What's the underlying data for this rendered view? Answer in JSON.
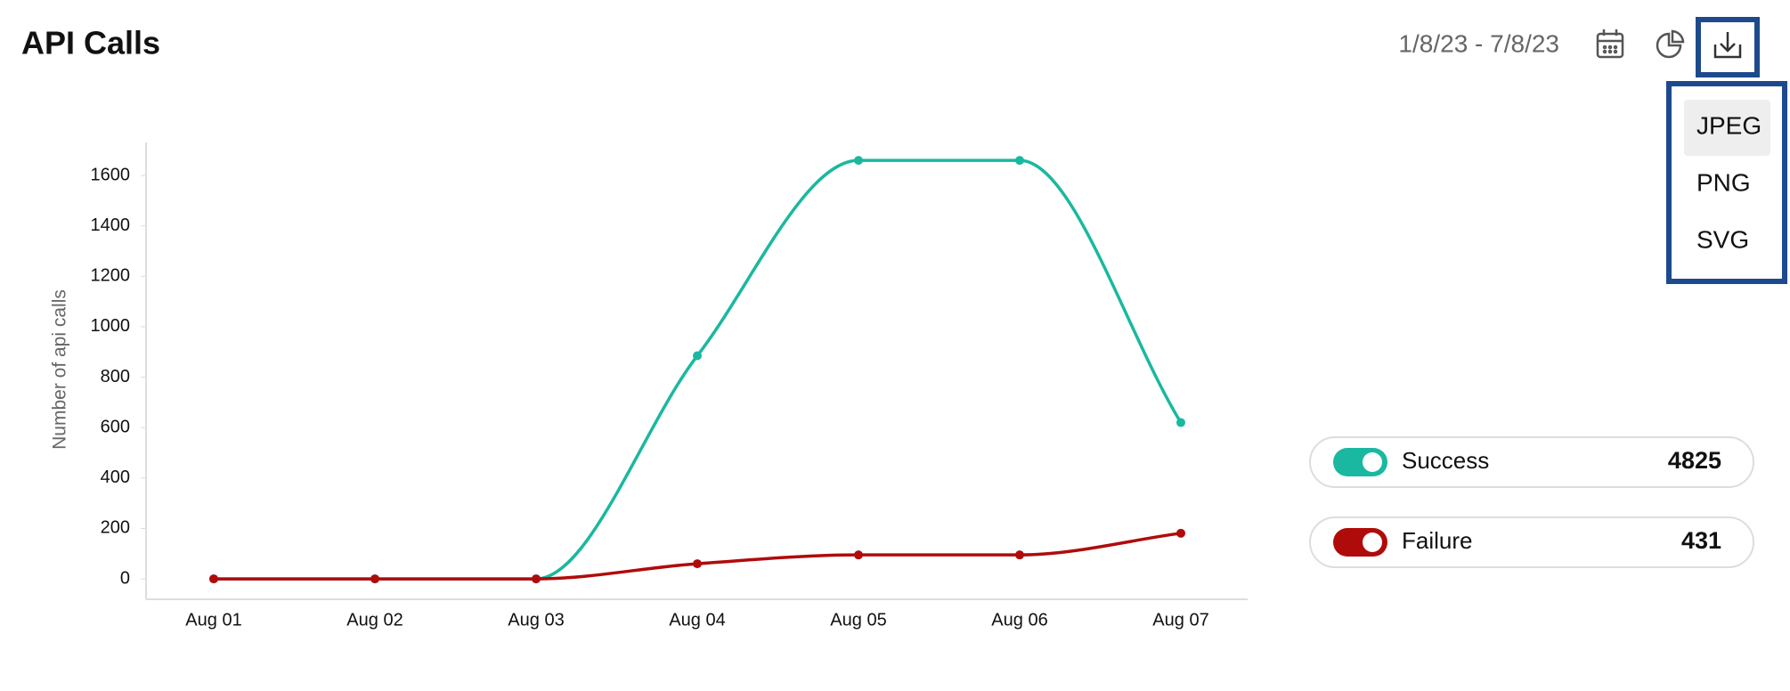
{
  "header": {
    "title": "API Calls",
    "date_range": "1/8/23 - 7/8/23"
  },
  "export_menu": {
    "items": [
      "JPEG",
      "PNG",
      "SVG"
    ]
  },
  "chart_data": {
    "type": "line",
    "y_label": "Number of api calls",
    "categories": [
      "Aug 01",
      "Aug 02",
      "Aug 03",
      "Aug 04",
      "Aug 05",
      "Aug 06",
      "Aug 07"
    ],
    "series": [
      {
        "name": "Success",
        "color": "#1ab8a0",
        "values": [
          0,
          0,
          0,
          885,
          1660,
          1660,
          620
        ],
        "total": 4825
      },
      {
        "name": "Failure",
        "color": "#b00b0b",
        "values": [
          0,
          0,
          0,
          60,
          95,
          95,
          181
        ],
        "total": 431
      }
    ],
    "ylim": [
      -81,
      1731
    ],
    "yticks": [
      0,
      200,
      400,
      600,
      800,
      1000,
      1200,
      1400,
      1600
    ],
    "grid": false
  }
}
